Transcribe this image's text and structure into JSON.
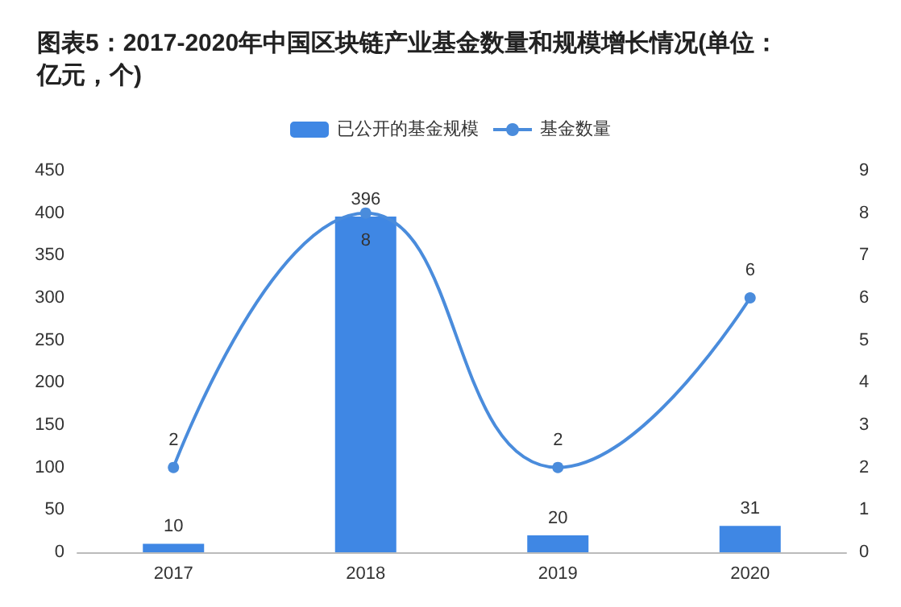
{
  "chart_data": {
    "type": "bar",
    "title": "图表5：2017-2020年中国区块链产业基金数量和规模增长情况(单位：亿元，个)",
    "categories": [
      "2017",
      "2018",
      "2019",
      "2020"
    ],
    "series": [
      {
        "name": "已公开的基金规模",
        "color": "#3f87e4",
        "values": [
          10,
          396,
          20,
          31
        ]
      },
      {
        "name": "基金数量",
        "type": "line",
        "axis": "y2",
        "color": "#4a8cdc",
        "values": [
          2,
          8,
          2,
          6
        ]
      }
    ],
    "ylim": [
      0,
      450
    ],
    "yticks": [
      0,
      50,
      100,
      150,
      200,
      250,
      300,
      350,
      400,
      450
    ],
    "y2lim": [
      0,
      9
    ],
    "y2ticks": [
      0,
      1,
      2,
      3,
      4,
      5,
      6,
      7,
      8,
      9
    ],
    "data_labels": true,
    "legend": "top",
    "grid": false,
    "marker": "circle"
  }
}
